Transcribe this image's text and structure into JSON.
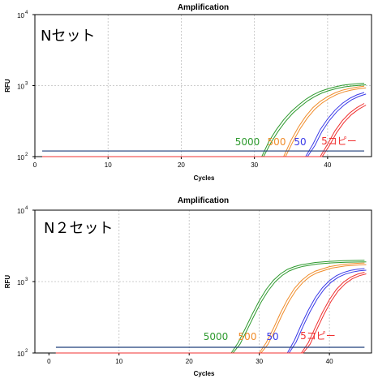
{
  "chart_data": [
    {
      "type": "line",
      "title": "Amplification",
      "panel_label": "Nセット",
      "xlabel": "Cycles",
      "ylabel": "RFU",
      "xlim": [
        0,
        46
      ],
      "ylim": [
        100,
        10000
      ],
      "yscale": "log",
      "xticks": [
        "0",
        "10",
        "20",
        "30",
        "40"
      ],
      "yticks": [
        {
          "base": "10",
          "exp": "2"
        },
        {
          "base": "10",
          "exp": "3"
        },
        {
          "base": "10",
          "exp": "4"
        }
      ],
      "grid": true,
      "threshold": 120,
      "threshold_color": "#1f3d7a",
      "series": [
        {
          "name": "5000",
          "color": "#2e9a2e",
          "replicates": 2,
          "x": [
            1,
            31,
            32,
            33,
            34,
            35,
            36,
            37,
            38,
            39,
            40,
            41,
            42,
            43,
            44,
            45
          ],
          "y": [
            100,
            100,
            165,
            240,
            330,
            430,
            530,
            640,
            740,
            830,
            900,
            960,
            1010,
            1040,
            1060,
            1080
          ]
        },
        {
          "name": "500",
          "color": "#f08c2a",
          "replicates": 2,
          "x": [
            1,
            34,
            35,
            36,
            37,
            38,
            39,
            40,
            41,
            42,
            43,
            44,
            45
          ],
          "y": [
            100,
            100,
            170,
            260,
            370,
            490,
            600,
            700,
            790,
            860,
            910,
            950,
            980
          ]
        },
        {
          "name": "50",
          "color": "#3a3ae8",
          "replicates": 2,
          "x": [
            1,
            37,
            38,
            39,
            40,
            41,
            42,
            43,
            44,
            45
          ],
          "y": [
            100,
            100,
            150,
            240,
            340,
            450,
            560,
            660,
            740,
            800
          ]
        },
        {
          "name": "5コピー",
          "color": "#f03030",
          "replicates": 2,
          "x": [
            1,
            39,
            40,
            41,
            42,
            43,
            44,
            45
          ],
          "y": [
            100,
            100,
            150,
            230,
            320,
            410,
            490,
            560
          ]
        }
      ]
    },
    {
      "type": "line",
      "title": "Amplification",
      "panel_label": "N２セット",
      "xlabel": "Cycles",
      "ylabel": "RFU",
      "xlim": [
        -2,
        46
      ],
      "ylim": [
        100,
        10000
      ],
      "yscale": "log",
      "xticks": [
        "0",
        "10",
        "20",
        "30",
        "40"
      ],
      "yticks": [
        {
          "base": "10",
          "exp": "2"
        },
        {
          "base": "10",
          "exp": "3"
        },
        {
          "base": "10",
          "exp": "4"
        }
      ],
      "grid": true,
      "threshold": 120,
      "threshold_color": "#1f3d7a",
      "series": [
        {
          "name": "5000",
          "color": "#2e9a2e",
          "replicates": 2,
          "x": [
            1,
            26,
            27,
            28,
            29,
            30,
            31,
            32,
            33,
            34,
            35,
            36,
            38,
            40,
            42,
            44,
            45
          ],
          "y": [
            100,
            100,
            140,
            220,
            350,
            540,
            780,
            1040,
            1280,
            1480,
            1620,
            1720,
            1850,
            1920,
            1960,
            1980,
            1990
          ]
        },
        {
          "name": "500",
          "color": "#f08c2a",
          "replicates": 2,
          "x": [
            1,
            30,
            31,
            32,
            33,
            34,
            35,
            36,
            37,
            38,
            40,
            42,
            44,
            45
          ],
          "y": [
            100,
            100,
            140,
            220,
            360,
            560,
            800,
            1030,
            1240,
            1400,
            1620,
            1740,
            1800,
            1820
          ]
        },
        {
          "name": "50",
          "color": "#3a3ae8",
          "replicates": 2,
          "x": [
            1,
            34,
            35,
            36,
            37,
            38,
            39,
            40,
            41,
            42,
            43,
            44,
            45
          ],
          "y": [
            100,
            100,
            150,
            250,
            400,
            600,
            820,
            1030,
            1210,
            1340,
            1430,
            1490,
            1520
          ]
        },
        {
          "name": "5コピー",
          "color": "#f03030",
          "replicates": 2,
          "x": [
            1,
            36,
            37,
            38,
            39,
            40,
            41,
            42,
            43,
            44,
            45
          ],
          "y": [
            100,
            100,
            140,
            230,
            370,
            560,
            780,
            980,
            1150,
            1270,
            1350
          ]
        }
      ]
    }
  ]
}
